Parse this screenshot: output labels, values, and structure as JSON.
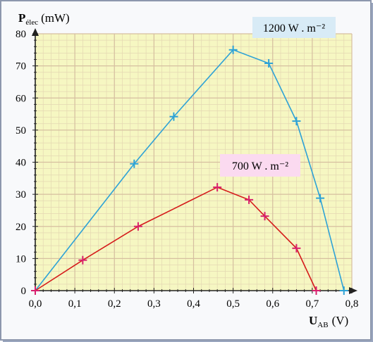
{
  "chart_data": {
    "type": "line",
    "ylabel_main": "P",
    "ylabel_sub": "élec",
    "ylabel_unit": "(mW)",
    "xlabel_main": "U",
    "xlabel_sub": "AB",
    "xlabel_unit": "(V)",
    "xlim": [
      0,
      0.8
    ],
    "ylim": [
      0,
      80
    ],
    "x_ticks": [
      "0,0",
      "0,1",
      "0,2",
      "0,3",
      "0,4",
      "0,5",
      "0,6",
      "0,7",
      "0,8"
    ],
    "y_ticks": [
      "0",
      "10",
      "20",
      "30",
      "40",
      "50",
      "60",
      "70",
      "80"
    ],
    "grid": true,
    "series": [
      {
        "name": "1200 W . m⁻²",
        "color": "#2ea2d6",
        "label_bg": "#d8ebf6",
        "x": [
          0.0,
          0.25,
          0.35,
          0.5,
          0.59,
          0.66,
          0.72,
          0.78
        ],
        "y": [
          0,
          39.5,
          54.2,
          75.0,
          70.8,
          52.8,
          28.8,
          0
        ]
      },
      {
        "name": "700 W . m⁻²",
        "color": "#d51b1b",
        "marker_color": "#d8206e",
        "label_bg": "#fbdaf0",
        "x": [
          0.0,
          0.12,
          0.26,
          0.46,
          0.54,
          0.58,
          0.66,
          0.71
        ],
        "y": [
          0,
          9.5,
          20.0,
          32.2,
          28.3,
          23.2,
          13.2,
          0
        ]
      }
    ]
  }
}
